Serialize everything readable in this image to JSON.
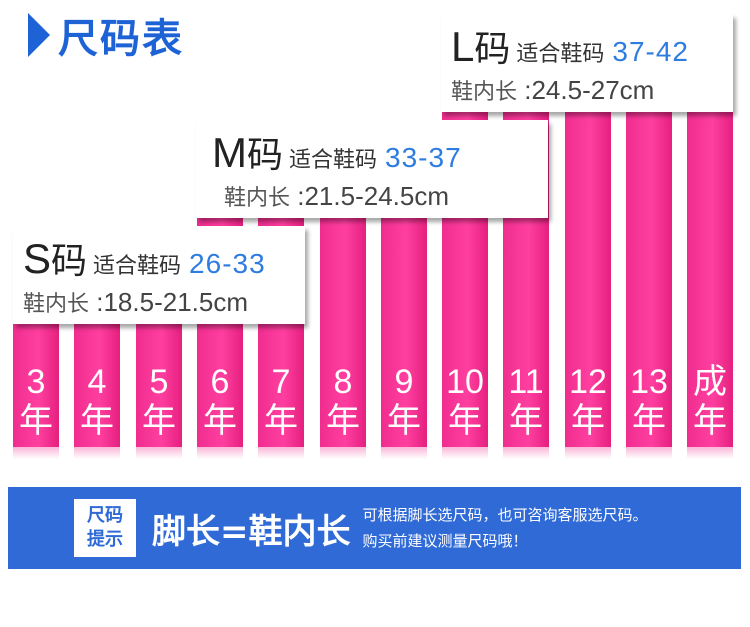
{
  "title": "尺码表",
  "bars": [
    {
      "num": "3",
      "unit": "年",
      "top_level": "S"
    },
    {
      "num": "4",
      "unit": "年",
      "top_level": "S"
    },
    {
      "num": "5",
      "unit": "年",
      "top_level": "S"
    },
    {
      "num": "6",
      "unit": "年",
      "top_level": "M"
    },
    {
      "num": "7",
      "unit": "年",
      "top_level": "M"
    },
    {
      "num": "8",
      "unit": "年",
      "top_level": "M"
    },
    {
      "num": "9",
      "unit": "年",
      "top_level": "M"
    },
    {
      "num": "10",
      "unit": "年",
      "top_level": "L"
    },
    {
      "num": "11",
      "unit": "年",
      "top_level": "L"
    },
    {
      "num": "12",
      "unit": "年",
      "top_level": "L"
    },
    {
      "num": "13",
      "unit": "年",
      "top_level": "L"
    },
    {
      "num": "成",
      "unit": "年",
      "top_level": "L"
    }
  ],
  "sizes": {
    "S": {
      "letter": "S",
      "ma": "码",
      "fit_label": "适合鞋码",
      "fit_range": "26-33",
      "inner_label": "鞋内长",
      "inner_value": ":18.5-21.5cm"
    },
    "M": {
      "letter": "M",
      "ma": "码",
      "fit_label": "适合鞋码",
      "fit_range": "33-37",
      "inner_label": "鞋内长",
      "inner_value": ":21.5-24.5cm"
    },
    "L": {
      "letter": "L",
      "ma": "码",
      "fit_label": "适合鞋码",
      "fit_range": "37-42",
      "inner_label": "鞋内长",
      "inner_value": ":24.5-27cm"
    }
  },
  "tip": {
    "badge_line1": "尺码",
    "badge_line2": "提示",
    "main": "脚长=鞋内长",
    "sub_line1": "可根据脚长选尺码，也可咨询客服选尺码。",
    "sub_line2": "购买前建议测量尺码哦！"
  },
  "colors": {
    "bar": "#f02d8f",
    "accent_blue": "#1e63d6",
    "range_blue": "#2e7cdf",
    "tip_bg": "#2f6ad6"
  }
}
